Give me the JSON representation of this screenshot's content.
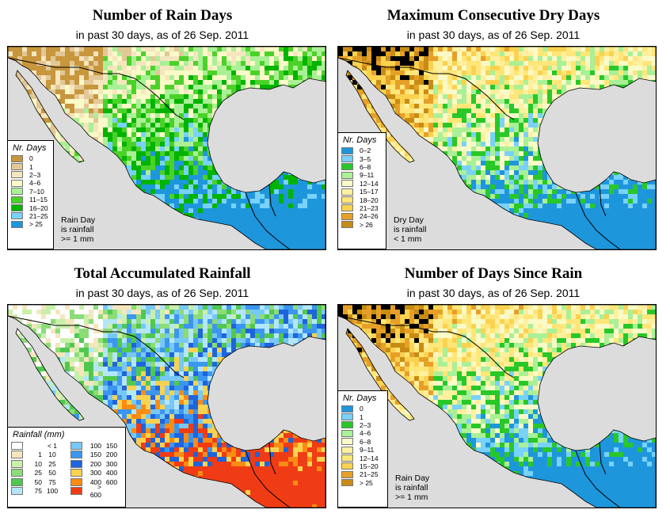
{
  "panels": [
    {
      "title": "Number of Rain Days",
      "subtitle": "in past 30 days, as of  26 Sep. 2011",
      "legend_title": "Nr. Days",
      "legend": [
        {
          "label": "0",
          "color": "#c8963c"
        },
        {
          "label": "1",
          "color": "#e2c896"
        },
        {
          "label": "2–3",
          "color": "#f5e6be"
        },
        {
          "label": "4–6",
          "color": "#fafac8"
        },
        {
          "label": "7–10",
          "color": "#aaf096"
        },
        {
          "label": "11–15",
          "color": "#4bd228"
        },
        {
          "label": "16–20",
          "color": "#00b400"
        },
        {
          "label": "21–25",
          "color": "#78d2fa"
        },
        {
          "label": "> 25",
          "color": "#1e96dc"
        }
      ],
      "note": [
        "Rain Day",
        "is rainfall",
        ">= 1 mm"
      ]
    },
    {
      "title": "Maximum Consecutive Dry Days",
      "subtitle": "in past 30 days, as of  26 Sep. 2011",
      "legend_title": "Nr. Days",
      "legend": [
        {
          "label": "0–2",
          "color": "#1e96dc"
        },
        {
          "label": "3–5",
          "color": "#78d2fa"
        },
        {
          "label": "6–8",
          "color": "#28c828"
        },
        {
          "label": "9–11",
          "color": "#aaf096"
        },
        {
          "label": "12–14",
          "color": "#fafac8"
        },
        {
          "label": "15–17",
          "color": "#fff0a0"
        },
        {
          "label": "18–20",
          "color": "#ffe678"
        },
        {
          "label": "21–23",
          "color": "#fad250"
        },
        {
          "label": "24–26",
          "color": "#e6a028"
        },
        {
          "label": "> 26",
          "color": "#c88c14"
        }
      ],
      "note": [
        "Dry Day",
        "is rainfall",
        "< 1 mm"
      ]
    },
    {
      "title": "Total Accumulated Rainfall",
      "subtitle": "in past 30 days, as of  26 Sep. 2011",
      "legend_title": "Rainfall (mm)",
      "legend_left": [
        {
          "a": "",
          "b": "< 1",
          "color": "#ffffff"
        },
        {
          "a": "1",
          "b": "10",
          "color": "#f5e6be"
        },
        {
          "a": "10",
          "b": "25",
          "color": "#c8f0aa"
        },
        {
          "a": "25",
          "b": "50",
          "color": "#8cdc78"
        },
        {
          "a": "50",
          "b": "75",
          "color": "#50c850"
        },
        {
          "a": "75",
          "b": "100",
          "color": "#b4e6fa"
        }
      ],
      "legend_right": [
        {
          "a": "100",
          "b": "150",
          "color": "#78c8f5"
        },
        {
          "a": "150",
          "b": "200",
          "color": "#3c96f0"
        },
        {
          "a": "200",
          "b": "300",
          "color": "#1e64dc"
        },
        {
          "a": "300",
          "b": "400",
          "color": "#fad250"
        },
        {
          "a": "400",
          "b": "600",
          "color": "#fa8c14"
        },
        {
          "a": "> 600",
          "b": "",
          "color": "#f03c14"
        }
      ]
    },
    {
      "title": "Number of Days Since Rain",
      "subtitle": "in past 30 days, as of  26 Sep. 2011",
      "legend_title": "Nr. Days",
      "legend": [
        {
          "label": "0",
          "color": "#1e96dc"
        },
        {
          "label": "1",
          "color": "#78d2fa"
        },
        {
          "label": "2–3",
          "color": "#28c828"
        },
        {
          "label": "4–6",
          "color": "#aaf096"
        },
        {
          "label": "6–8",
          "color": "#fafac8"
        },
        {
          "label": "9–11",
          "color": "#fff0a0"
        },
        {
          "label": "12–14",
          "color": "#ffe678"
        },
        {
          "label": "15–20",
          "color": "#fad250"
        },
        {
          "label": "21–25",
          "color": "#e6a028"
        },
        {
          "label": "> 25",
          "color": "#c88c14"
        }
      ],
      "note": [
        "Rain Day",
        "is rainfall",
        ">= 1 mm"
      ]
    }
  ],
  "colors": {
    "ocean": "#dcdcdc",
    "border": "#000000"
  }
}
